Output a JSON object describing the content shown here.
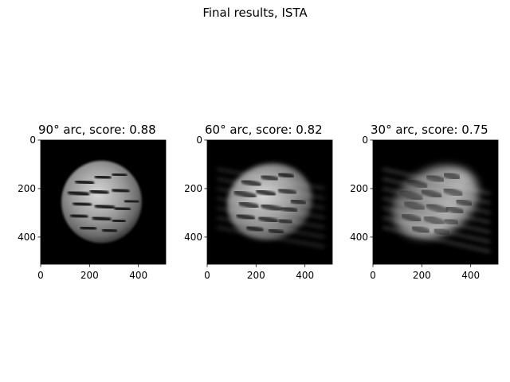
{
  "title": "Final results, ISTA",
  "chart_data": [
    {
      "type": "heatmap",
      "title": "90° arc, score: 0.88",
      "arc_degrees": 90,
      "score": 0.88,
      "xlim": [
        0,
        512
      ],
      "ylim": [
        512,
        0
      ],
      "xticks": [
        0,
        200,
        400
      ],
      "yticks": [
        0,
        200,
        400
      ],
      "colormap": "gray",
      "image": "grayscale reconstruction"
    },
    {
      "type": "heatmap",
      "title": "60° arc, score: 0.82",
      "arc_degrees": 60,
      "score": 0.82,
      "xlim": [
        0,
        512
      ],
      "ylim": [
        512,
        0
      ],
      "xticks": [
        0,
        200,
        400
      ],
      "yticks": [
        0,
        200,
        400
      ],
      "colormap": "gray",
      "image": "grayscale reconstruction"
    },
    {
      "type": "heatmap",
      "title": "30° arc, score: 0.75",
      "arc_degrees": 30,
      "score": 0.75,
      "xlim": [
        0,
        512
      ],
      "ylim": [
        512,
        0
      ],
      "xticks": [
        0,
        200,
        400
      ],
      "yticks": [
        0,
        200,
        400
      ],
      "colormap": "gray",
      "image": "grayscale reconstruction"
    }
  ]
}
